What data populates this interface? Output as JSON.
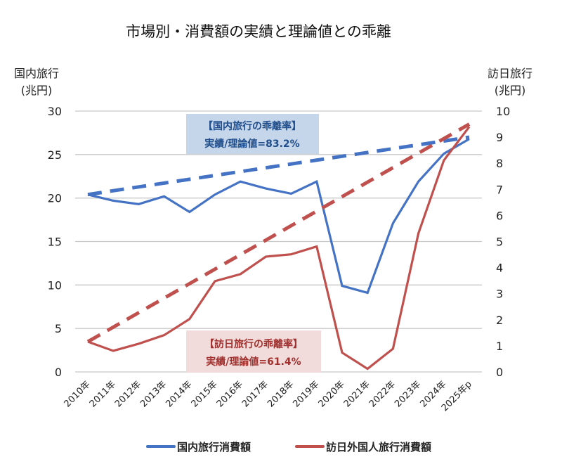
{
  "chart_data": {
    "type": "line",
    "title": "市場別・消費額の実績と理論値との乖離",
    "xlabel": "",
    "ylabel_left": [
      "国内旅行",
      "(兆円)"
    ],
    "ylabel_right": [
      "訪日旅行",
      "(兆円)"
    ],
    "categories": [
      "2010年",
      "2011年",
      "2012年",
      "2013年",
      "2014年",
      "2015年",
      "2016年",
      "2017年",
      "2018年",
      "2019年",
      "2020年",
      "2021年",
      "2022年",
      "2023年",
      "2024年",
      "2025年p"
    ],
    "y_left": {
      "min": 0,
      "max": 30,
      "ticks": [
        0,
        5,
        10,
        15,
        20,
        25,
        30
      ]
    },
    "y_right": {
      "min": 0,
      "max": 10,
      "ticks": [
        0,
        1,
        2,
        3,
        4,
        5,
        6,
        7,
        8,
        9,
        10
      ]
    },
    "grid": true,
    "legend_position": "bottom",
    "series": [
      {
        "name": "国内旅行消費額",
        "axis": "left",
        "style": "solid",
        "color": "#4472C4",
        "values": [
          20.4,
          19.7,
          19.3,
          20.2,
          18.4,
          20.4,
          21.9,
          21.1,
          20.5,
          21.9,
          9.9,
          9.1,
          17.1,
          21.9,
          25.1,
          26.8
        ]
      },
      {
        "name": "訪日外国人旅行消費額",
        "axis": "right",
        "style": "solid",
        "color": "#C0504D",
        "values": [
          1.16,
          0.81,
          1.08,
          1.41,
          2.03,
          3.48,
          3.75,
          4.42,
          4.51,
          4.81,
          0.74,
          0.12,
          0.89,
          5.31,
          8.11,
          9.4
        ]
      },
      {
        "name": "国内旅行理論値",
        "axis": "left",
        "style": "dashed",
        "color": "#4472C4",
        "in_legend": false,
        "from": {
          "x": "2010年",
          "y": 20.4
        },
        "to": {
          "x": "2025年p",
          "y": 27.0
        }
      },
      {
        "name": "訪日旅行理論値",
        "axis": "right",
        "style": "dashed",
        "color": "#C0504D",
        "in_legend": false,
        "from": {
          "x": "2010年",
          "y": 1.16
        },
        "to": {
          "x": "2025年p",
          "y": 9.5
        }
      }
    ],
    "annotations": [
      {
        "id": "domestic",
        "lines": [
          "【国内旅行の乖離率】",
          "実績/理論値=83.2%"
        ],
        "text_color": "#1F4E8C",
        "bg_color": "#C5D5EA"
      },
      {
        "id": "inbound",
        "lines": [
          "【訪日旅行の乖離率】",
          "実績/理論値=61.4%"
        ],
        "text_color": "#A0302E",
        "bg_color": "#F2DCDB"
      }
    ]
  }
}
